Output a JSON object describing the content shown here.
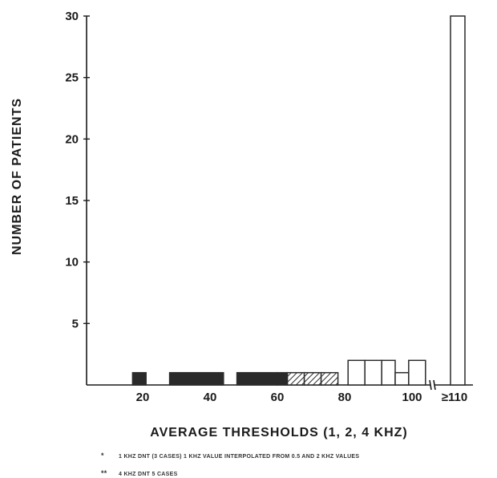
{
  "chart_data": {
    "type": "bar",
    "xlabel": "AVERAGE THRESHOLDS (1, 2, 4 KHZ)",
    "ylabel": "NUMBER OF PATIENTS",
    "ylim": [
      0,
      30
    ],
    "yticks": [
      5,
      10,
      15,
      20,
      25,
      30
    ],
    "xticks": [
      {
        "value": 20,
        "label": "20"
      },
      {
        "value": 40,
        "label": "40"
      },
      {
        "value": 60,
        "label": "60"
      },
      {
        "value": 80,
        "label": "80"
      },
      {
        "value": 100,
        "label": "100"
      }
    ],
    "overflow_label": "≥110",
    "grid": false,
    "series": [
      {
        "pattern": "solid",
        "color": "#2a2a2a",
        "bins": [
          {
            "x0": 17,
            "x1": 21,
            "value": 1
          },
          {
            "x0": 28,
            "x1": 44,
            "value": 1
          },
          {
            "x0": 48,
            "x1": 60,
            "value": 1
          },
          {
            "x0": 60,
            "x1": 63,
            "value": 1
          }
        ]
      },
      {
        "pattern": "hatched",
        "color": "#2a2a2a",
        "bins": [
          {
            "x0": 63,
            "x1": 68,
            "value": 1
          },
          {
            "x0": 68,
            "x1": 73,
            "value": 1
          },
          {
            "x0": 73,
            "x1": 78,
            "value": 1
          }
        ]
      },
      {
        "pattern": "open",
        "color": "#2a2a2a",
        "bins": [
          {
            "x0": 81,
            "x1": 86,
            "value": 2
          },
          {
            "x0": 86,
            "x1": 91,
            "value": 2
          },
          {
            "x0": 91,
            "x1": 95,
            "value": 2
          },
          {
            "x0": 95,
            "x1": 99,
            "value": 1
          },
          {
            "x0": 99,
            "x1": 104,
            "value": 2
          }
        ]
      },
      {
        "pattern": "open",
        "color": "#2a2a2a",
        "bins": [
          {
            "x0": 110,
            "x1": 115,
            "value": 30
          }
        ]
      }
    ]
  },
  "footnotes": [
    {
      "mark": "*",
      "text": "1 KHZ DNT (3 CASES)  1 KHZ VALUE INTERPOLATED FROM 0.5 AND 2 KHZ VALUES"
    },
    {
      "mark": "**",
      "text": "4 KHZ DNT 5 CASES"
    }
  ]
}
